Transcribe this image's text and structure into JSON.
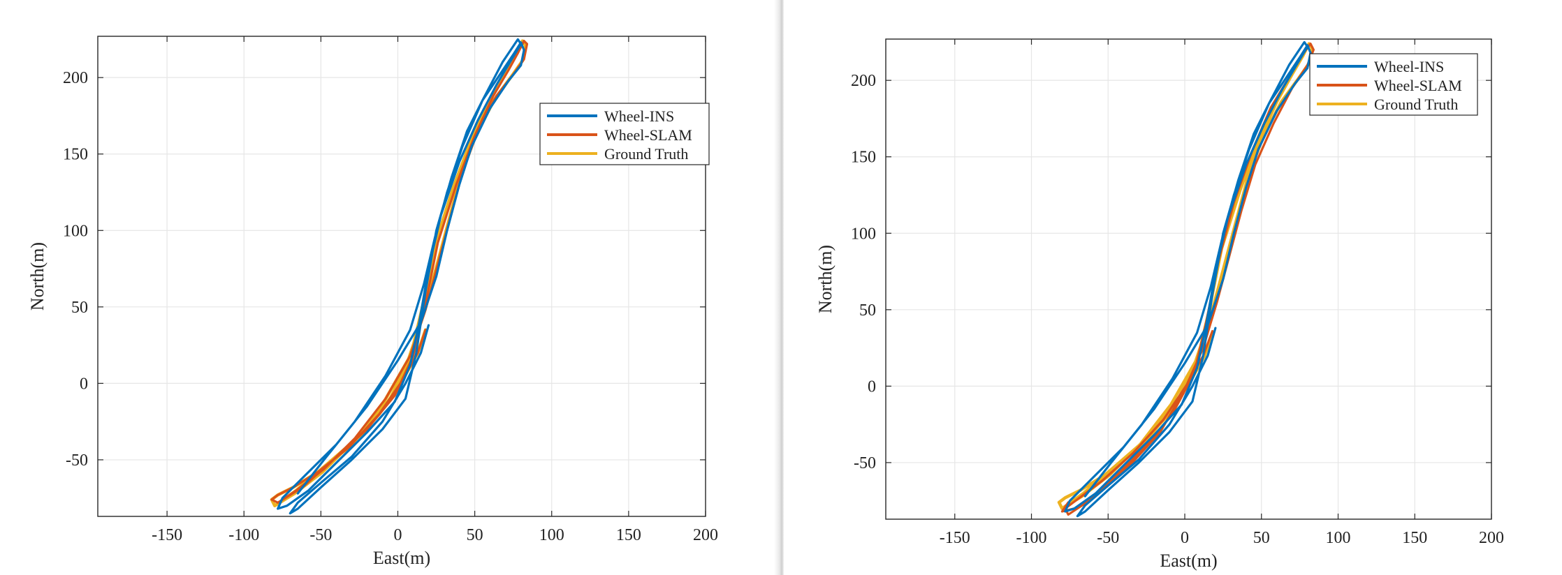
{
  "colors": {
    "background": "#ffffff",
    "axes": "#262626",
    "grid": "#e6e6e6",
    "wheel_ins": "#0072BD",
    "wheel_slam": "#D95319",
    "ground_truth": "#EDB120"
  },
  "chart_data": [
    {
      "type": "line",
      "xlabel": "East(m)",
      "ylabel": "North(m)",
      "xlim": [
        -195,
        200
      ],
      "ylim": [
        -87,
        227
      ],
      "xticks": [
        -150,
        -100,
        -50,
        0,
        50,
        100,
        150,
        200
      ],
      "yticks": [
        -50,
        0,
        50,
        100,
        150,
        200
      ],
      "xtick_labels": [
        "-150",
        "-100",
        "-50",
        "0",
        "50",
        "100",
        "150",
        "200"
      ],
      "ytick_labels": [
        "-50",
        "0",
        "50",
        "100",
        "150",
        "200"
      ],
      "grid": true,
      "legend_position": "top-right",
      "legend": [
        "Wheel-INS",
        "Wheel-SLAM",
        "Ground Truth"
      ],
      "series": [
        {
          "name": "Wheel-INS",
          "color": "#0072BD",
          "x": [
            20,
            15,
            5,
            -10,
            -30,
            -50,
            -65,
            -70,
            -65,
            -50,
            -30,
            -10,
            5,
            12,
            18,
            25,
            35,
            45,
            55,
            65,
            75,
            80,
            82,
            80,
            72,
            60,
            48,
            40,
            32,
            25,
            15,
            0,
            -20,
            -40,
            -60,
            -75,
            -78,
            -72,
            -58,
            -40,
            -20,
            -2,
            8,
            14,
            20,
            28,
            40,
            52,
            64,
            74,
            80,
            78,
            68,
            55,
            42,
            32,
            24,
            17,
            8,
            -8,
            -28,
            -48,
            -65
          ],
          "y": [
            38,
            20,
            0,
            -25,
            -48,
            -65,
            -78,
            -85,
            -82,
            -68,
            -50,
            -30,
            -10,
            20,
            60,
            100,
            135,
            165,
            185,
            200,
            215,
            223,
            218,
            208,
            198,
            180,
            155,
            130,
            100,
            70,
            40,
            15,
            -15,
            -40,
            -60,
            -75,
            -82,
            -80,
            -70,
            -52,
            -32,
            -12,
            12,
            40,
            75,
            110,
            145,
            172,
            195,
            212,
            222,
            225,
            210,
            185,
            155,
            125,
            95,
            65,
            35,
            5,
            -25,
            -50,
            -72
          ]
        },
        {
          "name": "Wheel-SLAM",
          "color": "#D95319",
          "x": [
            18,
            13,
            3,
            -12,
            -32,
            -52,
            -68,
            -78,
            -82,
            -78,
            -62,
            -42,
            -20,
            -2,
            10,
            18,
            26,
            38,
            50,
            62,
            72,
            78,
            82,
            84,
            82,
            75,
            64,
            52,
            42,
            34,
            26,
            18,
            8,
            -8,
            -28,
            -48,
            -66,
            -78
          ],
          "y": [
            35,
            20,
            2,
            -20,
            -42,
            -58,
            -68,
            -73,
            -76,
            -78,
            -68,
            -50,
            -30,
            -8,
            18,
            52,
            92,
            130,
            162,
            188,
            205,
            216,
            224,
            222,
            212,
            202,
            188,
            165,
            138,
            108,
            78,
            48,
            18,
            -10,
            -36,
            -56,
            -70,
            -78
          ]
        },
        {
          "name": "Ground Truth",
          "color": "#EDB120",
          "x": [
            18,
            13,
            3,
            -12,
            -32,
            -52,
            -68,
            -78,
            -82,
            -80,
            -66,
            -45,
            -22,
            -5,
            8,
            16,
            24,
            36,
            48,
            60,
            70,
            77,
            81,
            83,
            81,
            74,
            63,
            51,
            41,
            33,
            25,
            17,
            7,
            -9,
            -29,
            -49,
            -67,
            -80
          ],
          "y": [
            35,
            20,
            2,
            -20,
            -42,
            -58,
            -68,
            -73,
            -76,
            -80,
            -70,
            -52,
            -32,
            -10,
            16,
            50,
            90,
            128,
            160,
            186,
            204,
            216,
            224,
            221,
            211,
            201,
            186,
            163,
            136,
            106,
            76,
            46,
            16,
            -12,
            -38,
            -58,
            -72,
            -80
          ]
        }
      ]
    },
    {
      "type": "line",
      "xlabel": "East(m)",
      "ylabel": "North(m)",
      "xlim": [
        -195,
        200
      ],
      "ylim": [
        -87,
        227
      ],
      "xticks": [
        -150,
        -100,
        -50,
        0,
        50,
        100,
        150,
        200
      ],
      "yticks": [
        -50,
        0,
        50,
        100,
        150,
        200
      ],
      "xtick_labels": [
        "-150",
        "-100",
        "-50",
        "0",
        "50",
        "100",
        "150",
        "200"
      ],
      "ytick_labels": [
        "-50",
        "0",
        "50",
        "100",
        "150",
        "200"
      ],
      "grid": true,
      "legend_position": "top-right",
      "legend": [
        "Wheel-INS",
        "Wheel-SLAM",
        "Ground Truth"
      ],
      "series": [
        {
          "name": "Wheel-INS",
          "color": "#0072BD",
          "x": [
            20,
            15,
            5,
            -10,
            -30,
            -50,
            -65,
            -70,
            -65,
            -50,
            -30,
            -10,
            5,
            12,
            18,
            25,
            35,
            45,
            55,
            65,
            75,
            80,
            82,
            80,
            72,
            60,
            48,
            40,
            32,
            25,
            15,
            0,
            -20,
            -40,
            -60,
            -75,
            -78,
            -72,
            -58,
            -40,
            -20,
            -2,
            8,
            14,
            20,
            28,
            40,
            52,
            64,
            74,
            80,
            78,
            68,
            55,
            42,
            32,
            24,
            17,
            8,
            -8,
            -28,
            -48,
            -65
          ],
          "y": [
            38,
            20,
            0,
            -25,
            -48,
            -65,
            -78,
            -85,
            -82,
            -68,
            -50,
            -30,
            -10,
            20,
            60,
            100,
            135,
            165,
            185,
            200,
            215,
            223,
            218,
            208,
            198,
            180,
            155,
            130,
            100,
            70,
            40,
            15,
            -15,
            -40,
            -60,
            -75,
            -82,
            -80,
            -70,
            -52,
            -32,
            -12,
            12,
            40,
            75,
            110,
            145,
            172,
            195,
            212,
            222,
            225,
            210,
            185,
            155,
            125,
            95,
            65,
            35,
            5,
            -25,
            -50,
            -72
          ]
        },
        {
          "name": "Wheel-SLAM",
          "color": "#D95319",
          "x": [
            18,
            12,
            2,
            -14,
            -34,
            -54,
            -70,
            -78,
            -76,
            -64,
            -46,
            -26,
            -8,
            6,
            14,
            22,
            32,
            44,
            56,
            68,
            76,
            82,
            84,
            80,
            70,
            58,
            46,
            37,
            29,
            21,
            12,
            0,
            -16,
            -36,
            -56,
            -72,
            -80,
            -76
          ],
          "y": [
            36,
            20,
            2,
            -22,
            -44,
            -62,
            -74,
            -80,
            -84,
            -76,
            -60,
            -40,
            -18,
            8,
            42,
            82,
            120,
            154,
            182,
            202,
            216,
            224,
            220,
            210,
            195,
            172,
            145,
            115,
            85,
            55,
            25,
            -2,
            -30,
            -52,
            -70,
            -80,
            -82,
            -76
          ]
        },
        {
          "name": "Ground Truth",
          "color": "#EDB120",
          "x": [
            18,
            13,
            3,
            -12,
            -32,
            -52,
            -68,
            -78,
            -82,
            -80,
            -66,
            -45,
            -22,
            -5,
            8,
            16,
            24,
            36,
            48,
            60,
            70,
            77,
            81,
            83,
            81,
            74,
            63,
            51,
            41,
            33,
            25,
            17,
            7,
            -9,
            -29,
            -49,
            -67,
            -80
          ],
          "y": [
            35,
            20,
            2,
            -20,
            -42,
            -58,
            -68,
            -73,
            -76,
            -80,
            -70,
            -52,
            -32,
            -10,
            16,
            50,
            90,
            128,
            160,
            186,
            204,
            216,
            224,
            221,
            211,
            201,
            186,
            163,
            136,
            106,
            76,
            46,
            16,
            -12,
            -38,
            -58,
            -72,
            -80
          ]
        }
      ]
    }
  ]
}
